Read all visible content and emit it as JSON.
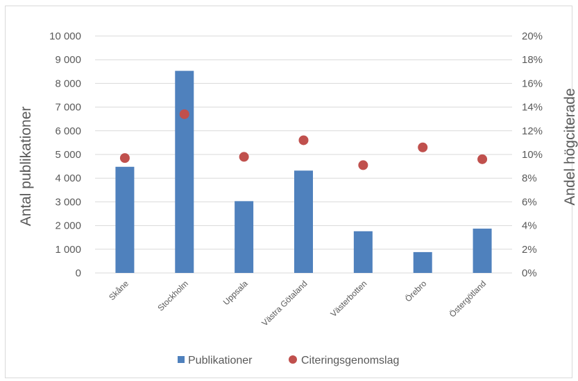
{
  "chart_data": {
    "type": "bar",
    "categories": [
      "Skåne",
      "Stockholm",
      "Uppsala",
      "Västra Götaland",
      "Västerbotten",
      "Örebro",
      "Östergötland"
    ],
    "series": [
      {
        "name": "Publikationer",
        "type": "bar",
        "axis": "left",
        "color": "#4f81bd",
        "values": [
          4480,
          8530,
          3030,
          4320,
          1760,
          880,
          1870
        ]
      },
      {
        "name": "Citeringsgenomslag",
        "type": "scatter",
        "axis": "right",
        "color": "#c0504d",
        "values": [
          0.097,
          0.134,
          0.098,
          0.112,
          0.091,
          0.106,
          0.096
        ]
      }
    ],
    "ylabel": "Antal publikationer",
    "y2label": "Andel högciterade",
    "ylim": [
      0,
      10000
    ],
    "y2lim": [
      0,
      0.2
    ],
    "yticks": [
      "0",
      "1 000",
      "2 000",
      "3 000",
      "4 000",
      "5 000",
      "6 000",
      "7 000",
      "8 000",
      "9 000",
      "10 000"
    ],
    "y2ticks": [
      "0%",
      "2%",
      "4%",
      "6%",
      "8%",
      "10%",
      "12%",
      "14%",
      "16%",
      "18%",
      "20%"
    ],
    "grid": true,
    "legend_position": "bottom"
  }
}
